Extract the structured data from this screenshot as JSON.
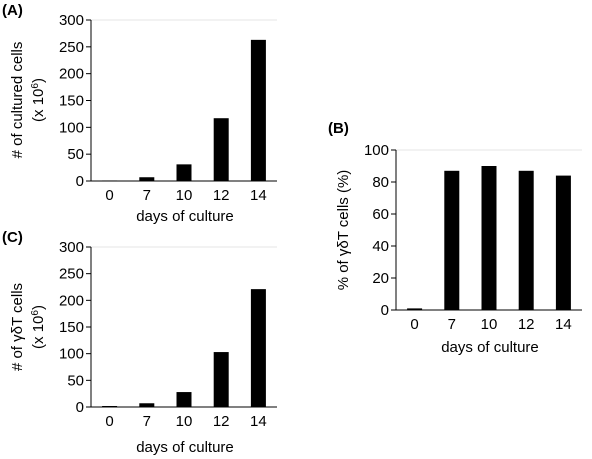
{
  "charts": [
    {
      "id": "A",
      "panel_label": "(A)",
      "ylabel_line1": "# of cultured cells",
      "ylabel_line2_prefix": "(x 10",
      "ylabel_line2_sup": "6",
      "ylabel_line2_suffix": ")",
      "xlabel": "days of culture"
    },
    {
      "id": "B",
      "panel_label": "(B)",
      "ylabel_line1": "% of γδT cells (%)",
      "xlabel": "days of culture"
    },
    {
      "id": "C",
      "panel_label": "(C)",
      "ylabel_line1": "# of γδT cells",
      "ylabel_line2_prefix": "(x 10",
      "ylabel_line2_sup": "6",
      "ylabel_line2_suffix": ")",
      "xlabel": "days of culture"
    }
  ],
  "chart_data": [
    {
      "type": "bar",
      "panel": "A",
      "title": "",
      "xlabel": "days of culture",
      "ylabel": "# of cultured cells (x 10^6)",
      "categories": [
        "0",
        "7",
        "10",
        "12",
        "14"
      ],
      "values": [
        1,
        7,
        31,
        117,
        263
      ],
      "ylim": [
        0,
        300
      ],
      "yticks": [
        0,
        50,
        100,
        150,
        200,
        250,
        300
      ],
      "grid": false,
      "color": "#000000"
    },
    {
      "type": "bar",
      "panel": "B",
      "title": "",
      "xlabel": "days of culture",
      "ylabel": "% of γδT cells (%)",
      "categories": [
        "0",
        "7",
        "10",
        "12",
        "14"
      ],
      "values": [
        1,
        87,
        90,
        87,
        84
      ],
      "ylim": [
        0,
        100
      ],
      "yticks": [
        0,
        20,
        40,
        60,
        80,
        100
      ],
      "grid": false,
      "color": "#000000"
    },
    {
      "type": "bar",
      "panel": "C",
      "title": "",
      "xlabel": "days of culture",
      "ylabel": "# of γδT cells (x 10^6)",
      "categories": [
        "0",
        "7",
        "10",
        "12",
        "14"
      ],
      "values": [
        0,
        7,
        28,
        103,
        221
      ],
      "ylim": [
        0,
        300
      ],
      "yticks": [
        0,
        50,
        100,
        150,
        200,
        250,
        300
      ],
      "grid": false,
      "color": "#000000"
    }
  ]
}
